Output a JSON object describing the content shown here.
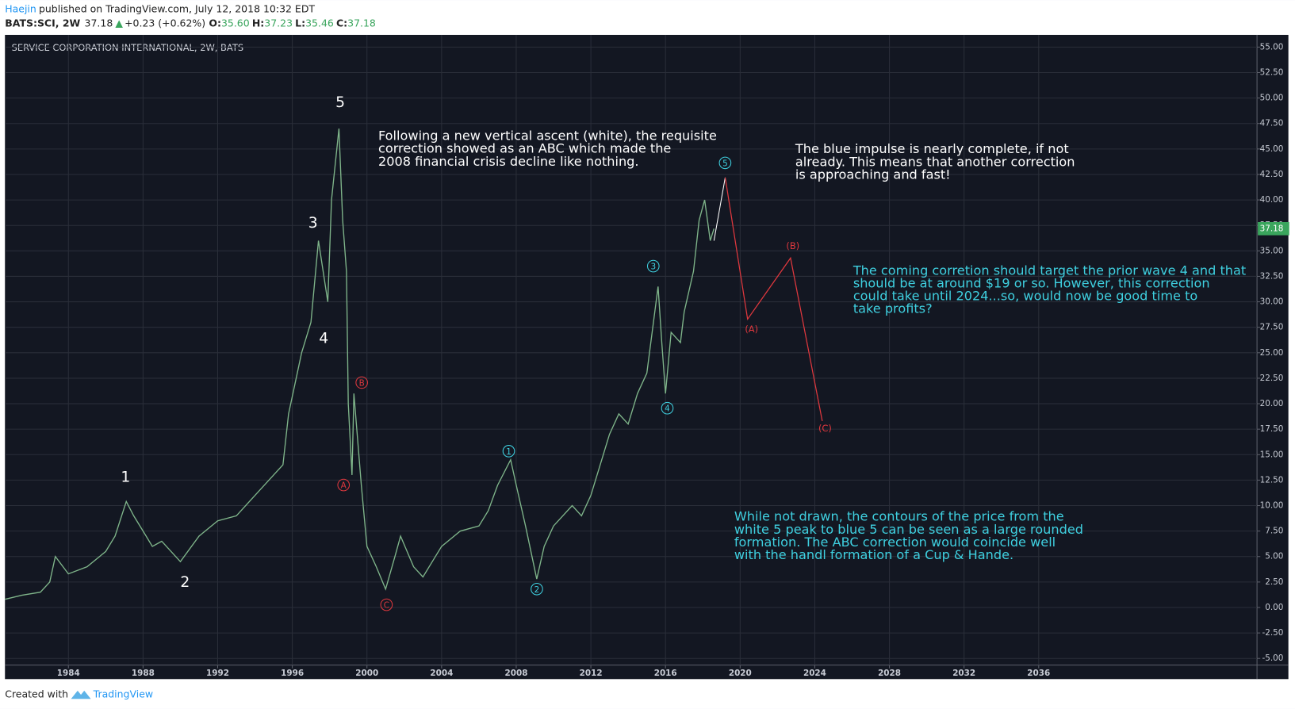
{
  "header": {
    "author": "Haejin",
    "published": "published on TradingView.com, July 12, 2018 10:32 EDT",
    "symbol": "BATS:SCI, 2W",
    "price": "37.18",
    "arrow": "▲",
    "change": "+0.23 (+0.62%)",
    "o_label": "O:",
    "o": "35.60",
    "h_label": "H:",
    "h": "37.23",
    "l_label": "L:",
    "l": "35.46",
    "c_label": "C:",
    "c": "37.18"
  },
  "footer": {
    "created": "Created with",
    "brand": "TradingView"
  },
  "chart_data": {
    "type": "line",
    "title": "SERVICE CORPORATION INTERNATIONAL, 2W, BATS",
    "color": "#7fb58a",
    "x": [
      1980.6,
      1981.5,
      1982.5,
      1983.0,
      1983.3,
      1984,
      1985,
      1986,
      1986.5,
      1987.1,
      1987.5,
      1988,
      1988.5,
      1989,
      1990,
      1991,
      1992,
      1993,
      1994,
      1995,
      1995.5,
      1995.8,
      1996.5,
      1997,
      1997.4,
      1997.9,
      1998.1,
      1998.5,
      1998.7,
      1998.9,
      1999.0,
      1999.2,
      1999.3,
      1999.7,
      2000,
      2000.5,
      2001,
      2001.5,
      2001.8,
      2002.5,
      2003,
      2003.5,
      2004,
      2005,
      2006,
      2006.5,
      2007,
      2007.7,
      2008,
      2008.5,
      2009.1,
      2009.5,
      2010,
      2011,
      2011.5,
      2012,
      2012.5,
      2013,
      2013.5,
      2014,
      2014.5,
      2015,
      2015.6,
      2015.8,
      2016,
      2016.3,
      2016.8,
      2017,
      2017.5,
      2017.8,
      2018.1,
      2018.4,
      2018.6
    ],
    "values": [
      0.8,
      1.2,
      1.5,
      2.5,
      5,
      3.3,
      4,
      5.5,
      7,
      10.4,
      9,
      7.5,
      6,
      6.5,
      4.5,
      7,
      8.5,
      9,
      11,
      13,
      14,
      19,
      25,
      28,
      36,
      30,
      40,
      47,
      38,
      33,
      20,
      13,
      21,
      12,
      6,
      4,
      1.8,
      5,
      7,
      4,
      3,
      4.5,
      6,
      7.5,
      8,
      9.5,
      12,
      14.5,
      12,
      8,
      2.8,
      6,
      8,
      10,
      9,
      11,
      14,
      17,
      19,
      18,
      21,
      23,
      31.5,
      26,
      21,
      27,
      26,
      29,
      33,
      38,
      40,
      36,
      37.18
    ],
    "impulse": {
      "color": "#ffffff",
      "x": [
        2018.6,
        2019.2
      ],
      "values": [
        36,
        42.2
      ]
    },
    "projection": {
      "color": "#e0383e",
      "x": [
        2019.2,
        2020.4,
        2022.7,
        2024.4
      ],
      "values": [
        42.2,
        28.3,
        34.3,
        18.3
      ]
    },
    "last_price": 37.18,
    "last_color": "#3aa55d",
    "xlim": [
      1980.6,
      2047.7
    ],
    "xticks": [
      1984,
      1988,
      1992,
      1996,
      2000,
      2004,
      2008,
      2012,
      2016,
      2020,
      2024,
      2028,
      2032,
      2036
    ],
    "ylim": [
      -5.65,
      56.2
    ],
    "yticks": [
      {
        "value": -5,
        "label": "-5.00"
      },
      {
        "value": -2.5,
        "label": "-2.50"
      },
      {
        "value": 0,
        "label": "0.00"
      },
      {
        "value": 2.5,
        "label": "2.50"
      },
      {
        "value": 5,
        "label": "5.00"
      },
      {
        "value": 7.5,
        "label": "7.50"
      },
      {
        "value": 10,
        "label": "10.00"
      },
      {
        "value": 12.5,
        "label": "12.50"
      },
      {
        "value": 15,
        "label": "15.00"
      },
      {
        "value": 17.5,
        "label": "17.50"
      },
      {
        "value": 20,
        "label": "20.00"
      },
      {
        "value": 22.5,
        "label": "22.50"
      },
      {
        "value": 25,
        "label": "25.00"
      },
      {
        "value": 27.5,
        "label": "27.50"
      },
      {
        "value": 30,
        "label": "30.00"
      },
      {
        "value": 32.5,
        "label": "32.50"
      },
      {
        "value": 35,
        "label": "35.00"
      },
      {
        "value": 37.5,
        "label": "37.50"
      },
      {
        "value": 40,
        "label": "40.00"
      },
      {
        "value": 42.5,
        "label": "42.50"
      },
      {
        "value": 45,
        "label": "45.00"
      },
      {
        "value": 47.5,
        "label": "47.50"
      },
      {
        "value": 50,
        "label": "50.00"
      },
      {
        "value": 52.5,
        "label": "52.50"
      },
      {
        "value": 55,
        "label": "55.00"
      }
    ],
    "grid": true,
    "waves_white": [
      "1",
      "2",
      "3",
      "4",
      "5"
    ],
    "waves_blue": [
      "1",
      "2",
      "3",
      "4",
      "5"
    ],
    "blue": "#3fd0e0",
    "waves_red": [
      "A",
      "B",
      "C"
    ],
    "red": "#e0383e",
    "waves_red_proj": [
      "(A)",
      "(B)",
      "(C)"
    ],
    "annotations": [
      {
        "color": "#ffffff",
        "lines": [
          "Following a new vertical ascent (white), the requisite",
          "correction showed as an ABC which made the",
          "2008 financial crisis decline like nothing."
        ]
      },
      {
        "color": "#ffffff",
        "lines": [
          "The blue impulse is nearly complete, if not",
          "already. This means that another correction",
          "is approaching and fast!"
        ]
      },
      {
        "color": "#3fd0e0",
        "lines": [
          "The coming corretion should target the prior wave 4 and that",
          "should be at around $19 or so. However, this correction",
          "could take until 2024...so, would now be good time to",
          "take profits?"
        ]
      },
      {
        "color": "#3fd0e0",
        "lines": [
          "While not drawn, the contours of the price from the",
          "white 5 peak to blue 5 can be seen as a large rounded",
          "formation. The ABC correction would coincide well",
          "with the handl formation of a Cup & Hande."
        ]
      }
    ]
  }
}
